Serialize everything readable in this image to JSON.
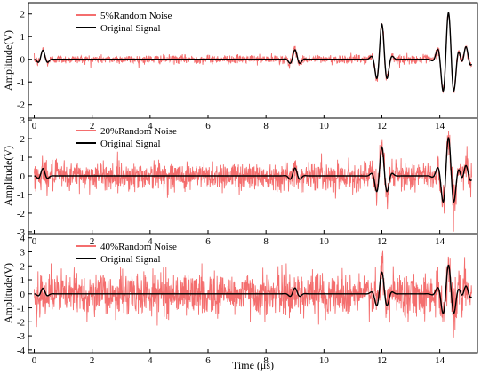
{
  "chart_data": [
    {
      "type": "line",
      "xlim": [
        -0.2,
        15.3
      ],
      "ylim": [
        -2.6,
        2.5
      ],
      "yticks": [
        -2,
        -1,
        0,
        1,
        2
      ],
      "ylabel": "Amplitude(V)",
      "xticks": [
        0,
        2,
        4,
        6,
        8,
        10,
        12,
        14
      ],
      "x_tick_labels_shown": true,
      "grid": false,
      "legend_position": "top-left",
      "series": [
        {
          "name": "5%Random Noise",
          "color": "#f46e6e",
          "noise_level": 0.05
        },
        {
          "name": "Original Signal",
          "color": "#000000"
        }
      ]
    },
    {
      "type": "line",
      "xlim": [
        -0.2,
        15.3
      ],
      "ylim": [
        -3.1,
        3.1
      ],
      "yticks": [
        -3,
        -2,
        -1,
        0,
        1,
        2,
        3
      ],
      "ylabel": "Amplitude(V)",
      "xticks": [
        0,
        2,
        4,
        6,
        8,
        10,
        12,
        14
      ],
      "x_tick_labels_shown": true,
      "grid": false,
      "legend_position": "top-left",
      "series": [
        {
          "name": "20%Random Noise",
          "color": "#f46e6e",
          "noise_level": 0.2
        },
        {
          "name": "Original Signal",
          "color": "#000000"
        }
      ]
    },
    {
      "type": "line",
      "xlim": [
        -0.2,
        15.3
      ],
      "ylim": [
        -4.2,
        4.3
      ],
      "yticks": [
        -4,
        -3,
        -2,
        -1,
        0,
        1,
        2,
        3,
        4
      ],
      "ylabel": "Amplitude(V)",
      "xticks": [
        0,
        2,
        4,
        6,
        8,
        10,
        12,
        14
      ],
      "x_tick_labels_shown": true,
      "xlabel": "Time (μs)",
      "grid": false,
      "legend_position": "top-left",
      "series": [
        {
          "name": "40%Random Noise",
          "color": "#f46e6e",
          "noise_level": 0.4
        },
        {
          "name": "Original Signal",
          "color": "#000000"
        }
      ]
    }
  ]
}
